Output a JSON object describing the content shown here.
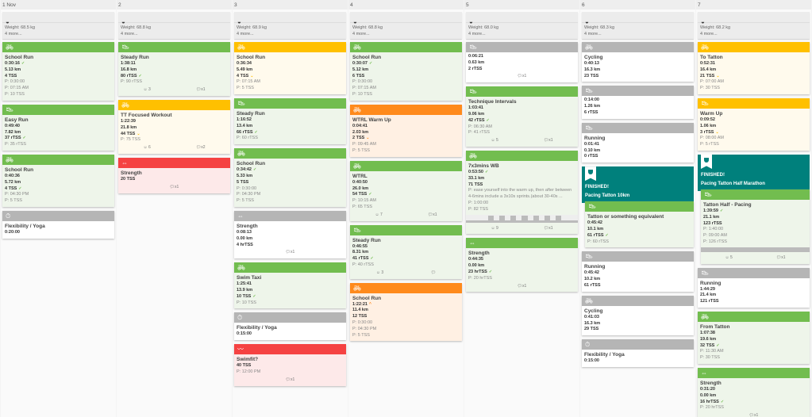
{
  "colors": {
    "green": "#72bd4f",
    "yellow": "#ffc000",
    "orange": "#ff8a1c",
    "red": "#f54242",
    "gray": "#b5b5b5",
    "teal": "#00807c"
  },
  "backgrounds": {
    "green": "#eef5ea",
    "yellow": "#fffaed",
    "orange": "#fff0e3",
    "red": "#fde9e9",
    "gray": "#ffffff"
  },
  "icons": {
    "bike": "bike-icon",
    "run": "shoe-icon",
    "strength": "dumbbell-icon",
    "yoga": "stopwatch-icon",
    "swim": "swim-icon",
    "metrics": "gauge-icon"
  },
  "days": [
    {
      "label": "1 Nov",
      "metric": {
        "weight": "Weight: 68.5 kg",
        "more": "4 more..."
      },
      "cards": [
        {
          "c": "green",
          "i": "bike",
          "title": "School Run",
          "stats": [
            [
              "0:30:16",
              "✓"
            ],
            [
              "5.13 km"
            ],
            [
              "4 TSS"
            ]
          ],
          "planned": [
            "P: 0:30:00",
            "P: 07:15 AM",
            "P: 10 TSS"
          ]
        },
        {
          "c": "green",
          "i": "run",
          "title": "Easy Run",
          "stats": [
            [
              "0:49:40"
            ],
            [
              "7.82 km"
            ],
            [
              "37 rTSS",
              "✓"
            ]
          ],
          "planned": [
            "P: 35 rTSS"
          ]
        },
        {
          "c": "green",
          "i": "bike",
          "title": "School Run",
          "stats": [
            [
              "0:40:36"
            ],
            [
              "5.72 km"
            ],
            [
              "4 TSS",
              "✓"
            ]
          ],
          "planned": [
            "P: 04:30 PM",
            "P: 5 TSS"
          ]
        },
        {
          "c": "gray",
          "i": "yoga",
          "title": "Flexibility / Yoga",
          "stats": [
            [
              "0:20:00"
            ]
          ]
        }
      ]
    },
    {
      "label": "2",
      "metric": {
        "weight": "Weight: 68.8 kg",
        "more": "4 more..."
      },
      "cards": [
        {
          "c": "green",
          "i": "run",
          "title": "Steady Run",
          "stats": [
            [
              "1:38:11"
            ],
            [
              "16.8 km"
            ],
            [
              "80 rTSS",
              "✓"
            ]
          ],
          "planned": [
            "P: 90 rTSS"
          ],
          "mood": "3",
          "comments": "x1"
        },
        {
          "c": "yellow",
          "i": "bike",
          "title": "TT Focused Workout",
          "stats": [
            [
              "1:22:39"
            ],
            [
              "21.8 km"
            ],
            [
              "44 TSS",
              "⌄"
            ]
          ],
          "planned": [
            "P: 75 TSS"
          ],
          "mood": "6",
          "comments": "x2"
        },
        {
          "c": "red",
          "i": "strength",
          "title": "Strength",
          "stats": [
            [
              "20 TSS"
            ]
          ],
          "comments": "x1"
        }
      ]
    },
    {
      "label": "3",
      "metric": {
        "weight": "Weight: 68.9 kg",
        "more": "4 more..."
      },
      "cards": [
        {
          "c": "yellow",
          "i": "bike",
          "title": "School Run",
          "stats": [
            [
              "0:36:34"
            ],
            [
              "5.49 km"
            ],
            [
              "4 TSS",
              "⌄"
            ]
          ],
          "planned": [
            "P: 07:15 AM",
            "P: 5 TSS"
          ]
        },
        {
          "c": "green",
          "i": "run",
          "title": "Steady Run",
          "stats": [
            [
              "1:16:52"
            ],
            [
              "13.4 km"
            ],
            [
              "66 rTSS",
              "✓"
            ]
          ],
          "planned": [
            "P: 60 rTSS"
          ]
        },
        {
          "c": "green",
          "i": "bike",
          "title": "School Run",
          "stats": [
            [
              "0:34:42",
              "✓"
            ],
            [
              "5.33 km"
            ],
            [
              "5 TSS"
            ]
          ],
          "planned": [
            "P: 0:30:00",
            "P: 04:30 PM",
            "P: 5 TSS"
          ]
        },
        {
          "c": "gray",
          "i": "strength",
          "title": "Strength",
          "stats": [
            [
              "0:08:13"
            ],
            [
              "0.00 km"
            ],
            [
              "4 hrTSS"
            ]
          ],
          "comments": "x1"
        },
        {
          "c": "green",
          "i": "bike",
          "title": "Swim Taxi",
          "stats": [
            [
              "1:25:41"
            ],
            [
              "13.9 km"
            ],
            [
              "10 TSS",
              "✓"
            ]
          ],
          "planned": [
            "P: 10 TSS"
          ]
        },
        {
          "c": "gray",
          "i": "yoga",
          "title": "Flexibility / Yoga",
          "stats": [
            [
              "0:15:00"
            ]
          ]
        },
        {
          "c": "red",
          "i": "swim",
          "title": "Swimfit?",
          "stats": [
            [
              "40 TSS"
            ]
          ],
          "planned": [
            "P: 12:00 PM"
          ],
          "comments": "x1"
        }
      ]
    },
    {
      "label": "4",
      "metric": {
        "weight": "Weight: 68.8 kg",
        "more": "4 more..."
      },
      "cards": [
        {
          "c": "green",
          "i": "bike",
          "title": "School Run",
          "stats": [
            [
              "0:30:07",
              "✓"
            ],
            [
              "5.12 km"
            ],
            [
              "6 TSS"
            ]
          ],
          "planned": [
            "P: 0:30:00",
            "P: 07:15 AM",
            "P: 10 TSS"
          ]
        },
        {
          "c": "orange",
          "i": "bike",
          "title": "WTRL Warm Up",
          "stats": [
            [
              "0:04:41"
            ],
            [
              "2.03 km"
            ],
            [
              "2 TSS",
              "⌄"
            ]
          ],
          "planned": [
            "P: 09:45 AM",
            "P: 5 TSS"
          ]
        },
        {
          "c": "green",
          "i": "bike",
          "title": "WTRL",
          "stats": [
            [
              "0:40:50"
            ],
            [
              "26.0 km"
            ],
            [
              "54 TSS",
              "✓"
            ]
          ],
          "planned": [
            "P: 10:15 AM",
            "P: 65 TSS"
          ],
          "mood": "7",
          "comments": "x1"
        },
        {
          "c": "green",
          "i": "run",
          "title": "Steady Run",
          "stats": [
            [
              "0:46:55"
            ],
            [
              "8.31 km"
            ],
            [
              "41 rTSS",
              "✓"
            ]
          ],
          "planned": [
            "P: 40 rTSS"
          ],
          "mood": "3",
          "comments": ""
        },
        {
          "c": "orange",
          "i": "bike",
          "title": "School Run",
          "stats": [
            [
              "1:22:21",
              "^"
            ],
            [
              "11.4 km"
            ],
            [
              "12 TSS"
            ]
          ],
          "planned": [
            "P: 0:30:00",
            "P: 04:30 PM",
            "P: 5 TSS"
          ]
        }
      ]
    },
    {
      "label": "5",
      "metric": {
        "weight": "Weight: 68.0 kg",
        "more": "4 more..."
      },
      "cards": [
        {
          "c": "gray",
          "i": "run",
          "title": "",
          "stats": [
            [
              "0:06:21"
            ],
            [
              "0.63 km"
            ],
            [
              "2 rTSS"
            ]
          ],
          "comments": "x1"
        },
        {
          "c": "green",
          "i": "run",
          "title": "Technique Intervals",
          "stats": [
            [
              "1:03:41"
            ],
            [
              "9.06 km"
            ],
            [
              "42 rTSS",
              "✓"
            ]
          ],
          "planned": [
            "P: 06:30 AM",
            "P: 41 rTSS"
          ],
          "mood": "5",
          "comments": "x1"
        },
        {
          "c": "green",
          "i": "bike",
          "title": "7x3mins WB",
          "stats": [
            [
              "0:53:50",
              "✓"
            ],
            [
              "33.1 km"
            ],
            [
              "71 TSS"
            ]
          ],
          "planned": [
            "P: ease yourself into the warm up, then after between 4-6mins include a 3x10s sprints.(about 30-40s ...",
            "P: 1:00:00",
            "P: 82 TSS"
          ],
          "wave": true,
          "mood": "9",
          "comments": "x1"
        },
        {
          "c": "green",
          "i": "strength",
          "title": "Strength",
          "stats": [
            [
              "0:44:35"
            ],
            [
              "0.00 km"
            ],
            [
              "23 hrTSS",
              "✓"
            ]
          ],
          "planned": [
            "P: 20 hrTSS"
          ],
          "comments": "x1"
        }
      ]
    },
    {
      "label": "6",
      "metric": {
        "weight": "Weight: 68.3 kg",
        "more": "4 more..."
      },
      "cards": [
        {
          "c": "gray",
          "i": "bike",
          "title": "Cycling",
          "stats": [
            [
              "0:40:13"
            ],
            [
              "16.3 km"
            ],
            [
              "23 TSS"
            ]
          ]
        },
        {
          "c": "gray",
          "i": "run",
          "title": "",
          "stats": [
            [
              "0:14:00"
            ],
            [
              "1.26 km"
            ],
            [
              "6 rTSS"
            ]
          ]
        },
        {
          "c": "gray",
          "i": "run",
          "title": "Running",
          "stats": [
            [
              "0:01:41"
            ],
            [
              "0.10 km"
            ],
            [
              "0 rTSS"
            ]
          ]
        },
        {
          "finished": "FINISHED!",
          "event": "Pacing Tatton 10km",
          "c": "green",
          "i": "run",
          "title": "Tatton or something equivalent",
          "stats": [
            [
              "0:45:42"
            ],
            [
              "10.1 km"
            ],
            [
              "61 rTSS",
              "✓"
            ]
          ],
          "planned": [
            "P: 60 rTSS"
          ]
        },
        {
          "c": "gray",
          "i": "run",
          "title": "Running",
          "stats": [
            [
              "0:45:42"
            ],
            [
              "10.2 km"
            ],
            [
              "61 rTSS"
            ]
          ]
        },
        {
          "c": "gray",
          "i": "bike",
          "title": "Cycling",
          "stats": [
            [
              "0:41:03"
            ],
            [
              "16.3 km"
            ],
            [
              "29 TSS"
            ]
          ]
        },
        {
          "c": "gray",
          "i": "yoga",
          "title": "Flexibility / Yoga",
          "stats": [
            [
              "0:15:00"
            ]
          ]
        }
      ]
    },
    {
      "label": "7",
      "metric": {
        "weight": "Weight: 68.2 kg",
        "more": "4 more..."
      },
      "cards": [
        {
          "c": "yellow",
          "i": "bike",
          "title": "To Tatton",
          "stats": [
            [
              "0:52:31"
            ],
            [
              "16.4 km"
            ],
            [
              "21 TSS",
              "⌄"
            ]
          ],
          "planned": [
            "P: 07:00 AM",
            "P: 30 TSS"
          ]
        },
        {
          "c": "yellow",
          "i": "run",
          "title": "Warm Up",
          "stats": [
            [
              "0:09:52"
            ],
            [
              "1.06 km"
            ],
            [
              "3 rTSS",
              "⌄"
            ]
          ],
          "planned": [
            "P: 08:00 AM",
            "P: 5 rTSS"
          ]
        },
        {
          "finished": "FINISHED!",
          "event": "Pacing Tatton Half Marathon",
          "c": "green",
          "i": "run",
          "title": "Tatton Half - Pacing",
          "stats": [
            [
              "1:39:59",
              "✓"
            ],
            [
              "21.1 km"
            ],
            [
              "123 rTSS"
            ]
          ],
          "planned": [
            "P: 1:40:00",
            "P: 09:00 AM",
            "P: 126 rTSS"
          ],
          "bar": true,
          "mood": "5",
          "comments": "x1"
        },
        {
          "c": "gray",
          "i": "run",
          "title": "Running",
          "stats": [
            [
              "1:44:29"
            ],
            [
              "21.4 km"
            ],
            [
              "121 rTSS"
            ]
          ]
        },
        {
          "c": "green",
          "i": "bike",
          "title": "From Tatton",
          "stats": [
            [
              "1:07:38"
            ],
            [
              "19.6 km"
            ],
            [
              "32 TSS",
              "✓"
            ]
          ],
          "planned": [
            "P: 11:30 AM",
            "P: 30 TSS"
          ]
        },
        {
          "c": "green",
          "i": "strength",
          "title": "Strength",
          "stats": [
            [
              "0:31:20"
            ],
            [
              "0.00 km"
            ],
            [
              "16 hrTSS",
              "✓"
            ]
          ],
          "planned": [
            "P: 20 hrTSS"
          ],
          "comments": "x1"
        }
      ]
    }
  ]
}
